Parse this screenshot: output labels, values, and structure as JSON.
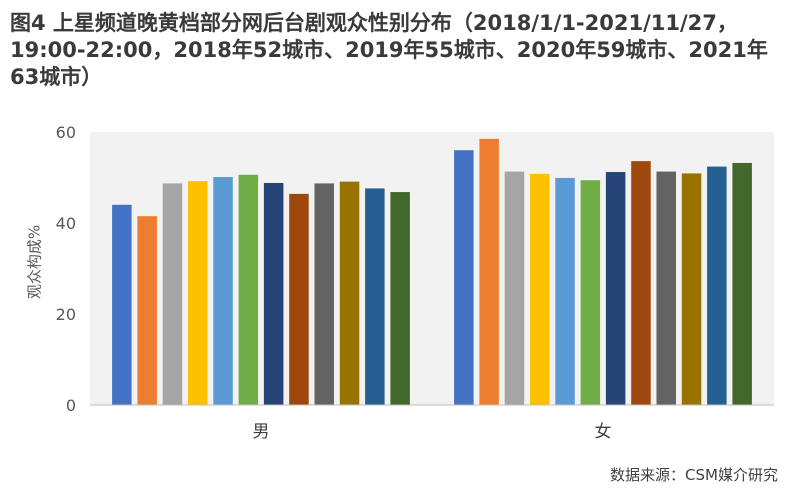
{
  "title": "图4 上星频道晚黄档部分网后台剧观众性别分布（2018/1/1-2021/11/27，19:00-22:00，2018年52城市、2019年55城市、2020年59城市、2021年63城市）",
  "source": "数据来源：CSM媒介研究",
  "chart_data": {
    "type": "bar",
    "title": "图4 上星频道晚黄档部分网后台剧观众性别分布（2018/1/1-2021/11/27，19:00-22:00，2018年52城市、2019年55城市、2020年59城市、2021年63城市）",
    "ylabel": "观众构成%",
    "xlabel": "",
    "categories": [
      "男",
      "女"
    ],
    "ylim": [
      0,
      60
    ],
    "yticks": [
      0,
      20,
      40,
      60
    ],
    "grid": false,
    "legend": "none",
    "series": [
      {
        "color": "#4472C4",
        "values": [
          44.0,
          56.0
        ]
      },
      {
        "color": "#ED7D31",
        "values": [
          41.5,
          58.5
        ]
      },
      {
        "color": "#A5A5A5",
        "values": [
          48.7,
          51.3
        ]
      },
      {
        "color": "#FFC000",
        "values": [
          49.2,
          50.8
        ]
      },
      {
        "color": "#5B9BD5",
        "values": [
          50.1,
          49.9
        ]
      },
      {
        "color": "#70AD47",
        "values": [
          50.6,
          49.4
        ]
      },
      {
        "color": "#264478",
        "values": [
          48.8,
          51.2
        ]
      },
      {
        "color": "#9E480E",
        "values": [
          46.4,
          53.6
        ]
      },
      {
        "color": "#636363",
        "values": [
          48.7,
          51.3
        ]
      },
      {
        "color": "#997300",
        "values": [
          49.1,
          50.9
        ]
      },
      {
        "color": "#255E91",
        "values": [
          47.6,
          52.4
        ]
      },
      {
        "color": "#43682B",
        "values": [
          46.8,
          53.2
        ]
      }
    ]
  }
}
